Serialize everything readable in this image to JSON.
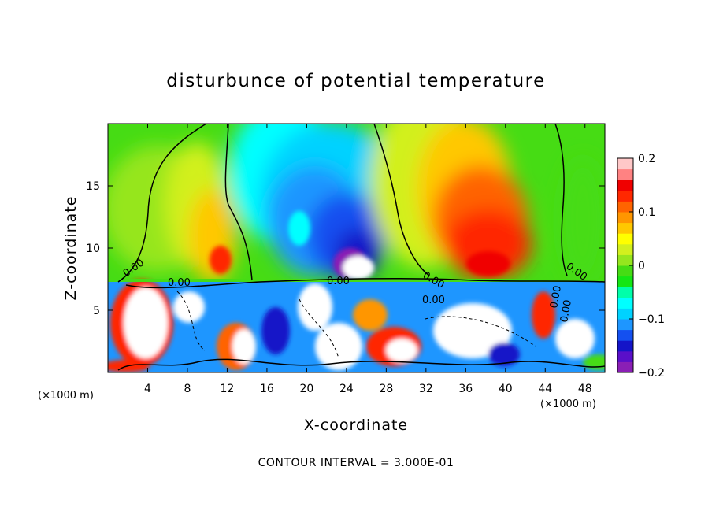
{
  "chart_data": {
    "type": "heatmap",
    "title": "disturbunce of potential temperature",
    "xlabel": "X-coordinate",
    "ylabel": "Z-coordinate",
    "x_unit": "(×1000 m)",
    "y_unit": "(×1000 m)",
    "x_ticks": [
      4,
      8,
      12,
      16,
      20,
      24,
      28,
      32,
      36,
      40,
      44,
      48
    ],
    "y_ticks": [
      5,
      10,
      15
    ],
    "xlim": [
      0,
      50
    ],
    "ylim": [
      0,
      20
    ],
    "color_scale": {
      "ticks": [
        "0.2",
        "0.1",
        "0",
        "−0.1",
        "−0.2"
      ],
      "min": -0.2,
      "max": 0.2,
      "colors": [
        "#8a1fb5",
        "#5a0fc9",
        "#1414c8",
        "#1450f0",
        "#1e96ff",
        "#00d2ff",
        "#00ffff",
        "#00ffaa",
        "#14e614",
        "#46dc14",
        "#96e61e",
        "#d2f01e",
        "#ffff00",
        "#ffc800",
        "#ff9600",
        "#ff6400",
        "#ff2800",
        "#f00000",
        "#ff8282",
        "#ffc8c8"
      ]
    },
    "contour_labels": [
      "0.00",
      "0.00",
      "0.00",
      "0.00",
      "0.00",
      "0.00",
      "0.00",
      "0.00"
    ],
    "footer": "CONTOUR INTERVAL = 3.000E-01"
  }
}
